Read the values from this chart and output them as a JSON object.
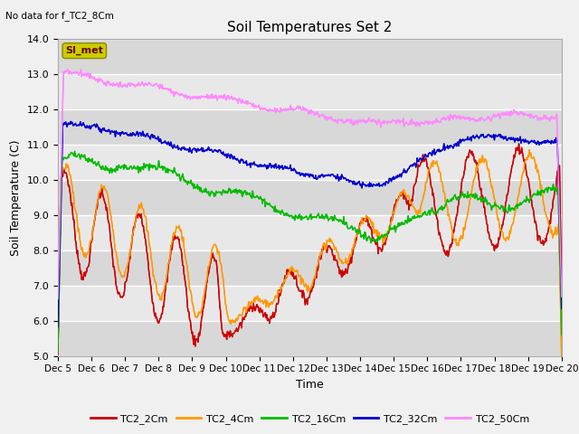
{
  "title": "Soil Temperatures Set 2",
  "subtitle": "No data for f_TC2_8Cm",
  "xlabel": "Time",
  "ylabel": "Soil Temperature (C)",
  "ylim": [
    5.0,
    14.0
  ],
  "yticks": [
    5.0,
    6.0,
    7.0,
    8.0,
    9.0,
    10.0,
    11.0,
    12.0,
    13.0,
    14.0
  ],
  "xtick_labels": [
    "Dec 5",
    "Dec 6",
    "Dec 7",
    "Dec 8",
    "Dec 9",
    "Dec 10",
    "Dec 11",
    "Dec 12",
    "Dec 13",
    "Dec 14",
    "Dec 15",
    "Dec 16",
    "Dec 17",
    "Dec 18",
    "Dec 19",
    "Dec 20"
  ],
  "fig_bg": "#f0f0f0",
  "plot_bg": "#e8e8e8",
  "colors": {
    "TC2_2Cm": "#cc0000",
    "TC2_4Cm": "#ff9900",
    "TC2_16Cm": "#00bb00",
    "TC2_32Cm": "#0000cc",
    "TC2_50Cm": "#ff88ff"
  },
  "line_width": 1.0,
  "num_points": 720
}
